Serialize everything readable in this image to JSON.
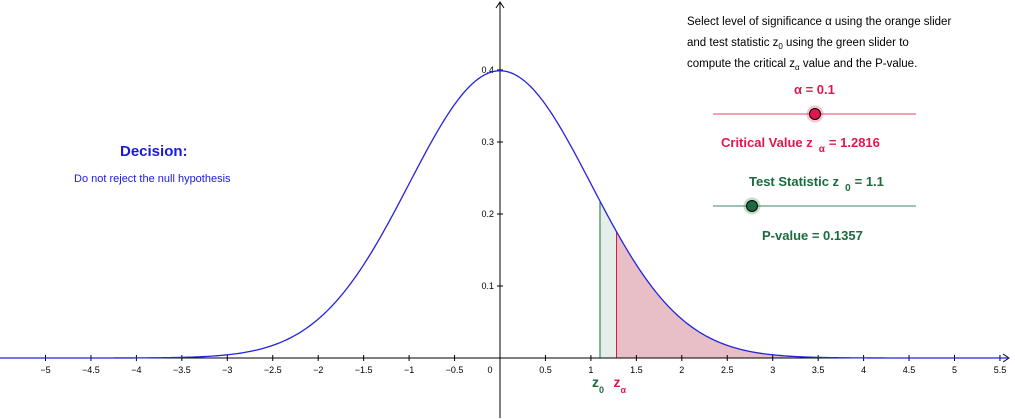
{
  "instructions": {
    "line1": "Select level of significance α using the orange slider",
    "line2_pre": "and test statistic z",
    "line2_sub": "0",
    "line2_post": " using the green slider to",
    "line3_pre": "compute the critical z",
    "line3_sub": "α",
    "line3_post": " value and the P-value."
  },
  "decision": {
    "title": "Decision:",
    "text": "Do not reject the null hypothesis"
  },
  "alpha_slider": {
    "label": "α = 0.1",
    "value": 0.1,
    "color": "#e0174d"
  },
  "critical": {
    "prefix": "Critical Value z",
    "sub": "α",
    "suffix": "= 1.2816",
    "value": 1.2816
  },
  "test_slider": {
    "prefix": "Test Statistic z",
    "sub": "0",
    "suffix": "= 1.1",
    "value": 1.1,
    "color": "#1b6b3c"
  },
  "pvalue": {
    "label": "P-value = 0.1357",
    "value": 0.1357
  },
  "chart_data": {
    "type": "area",
    "series": [
      {
        "name": "",
        "function": "standard normal density",
        "mean": 0,
        "sd": 1,
        "color": "#2323e0"
      }
    ],
    "xlim": [
      -5.5,
      5.6
    ],
    "ylim": [
      -0.08,
      0.49
    ],
    "x_ticks": [
      -5,
      -4.5,
      -4,
      -3.5,
      -3,
      -2.5,
      -2,
      -1.5,
      -1,
      -0.5,
      0,
      0.5,
      1,
      1.5,
      2,
      2.5,
      3,
      3.5,
      4,
      4.5,
      5,
      5.5
    ],
    "x_tick_labels": [
      "−5",
      "−4.5",
      "−4",
      "−3.5",
      "−3",
      "−2.5",
      "−2",
      "−1.5",
      "−1",
      "−0.5",
      "0",
      "0.5",
      "1",
      "1.5",
      "2",
      "2.5",
      "3",
      "3.5",
      "4",
      "4.5",
      "5",
      "5.5"
    ],
    "y_ticks": [
      0.1,
      0.2,
      0.3,
      0.4
    ],
    "y_tick_labels": [
      "0.1",
      "0.2",
      "0.3",
      "0.4"
    ],
    "shaded_regions": [
      {
        "from": 1.1,
        "to": 1.2816,
        "fill": "#e3ece7",
        "edge": "#1b6b3c"
      },
      {
        "from": 1.2816,
        "to": 5.6,
        "fill": "#e6b8c0",
        "edge": "#e0174d"
      }
    ],
    "markers": [
      {
        "x": 1.1,
        "label": "z",
        "sub": "0",
        "color": "#1b6b3c"
      },
      {
        "x": 1.2816,
        "label": "z",
        "sub": "α",
        "color": "#e0174d"
      }
    ],
    "grid": false,
    "title": "",
    "xlabel": "",
    "ylabel": ""
  }
}
